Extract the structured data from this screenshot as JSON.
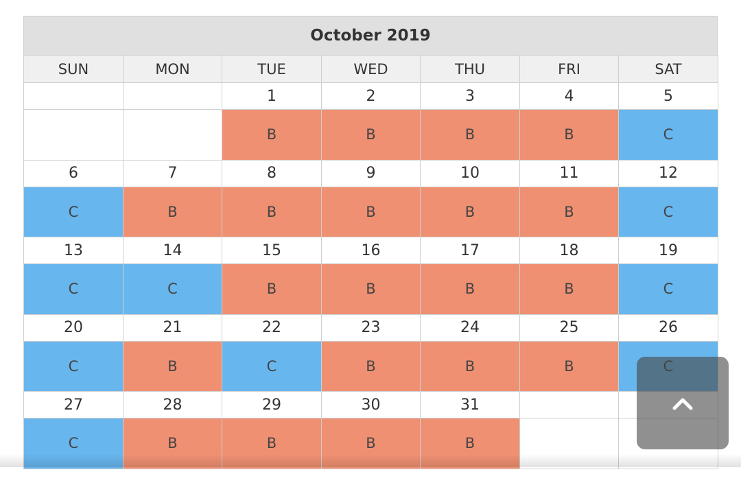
{
  "calendar": {
    "title": "October 2019",
    "days": [
      "SUN",
      "MON",
      "TUE",
      "WED",
      "THU",
      "FRI",
      "SAT"
    ],
    "code_colors": {
      "B": "#ef9072",
      "C": "#68b6ee"
    },
    "weeks": [
      {
        "dates": [
          null,
          null,
          1,
          2,
          3,
          4,
          5
        ],
        "codes": [
          null,
          null,
          "B",
          "B",
          "B",
          "B",
          "C"
        ]
      },
      {
        "dates": [
          6,
          7,
          8,
          9,
          10,
          11,
          12
        ],
        "codes": [
          "C",
          "B",
          "B",
          "B",
          "B",
          "B",
          "C"
        ]
      },
      {
        "dates": [
          13,
          14,
          15,
          16,
          17,
          18,
          19
        ],
        "codes": [
          "C",
          "C",
          "B",
          "B",
          "B",
          "B",
          "C"
        ]
      },
      {
        "dates": [
          20,
          21,
          22,
          23,
          24,
          25,
          26
        ],
        "codes": [
          "C",
          "B",
          "C",
          "B",
          "B",
          "B",
          "C"
        ]
      },
      {
        "dates": [
          27,
          28,
          29,
          30,
          31,
          null,
          null
        ],
        "codes": [
          "C",
          "B",
          "B",
          "B",
          "B",
          null,
          null
        ]
      }
    ]
  }
}
